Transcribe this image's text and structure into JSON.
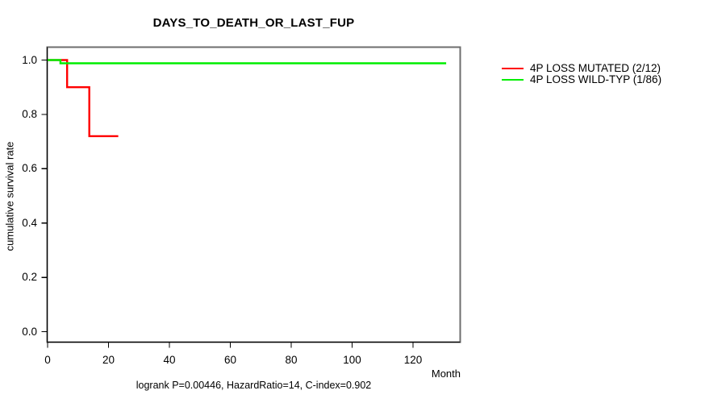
{
  "chart_data": {
    "type": "line",
    "subtype": "kaplan-meier-step",
    "title": "DAYS_TO_DEATH_OR_LAST_FUP",
    "xlabel": "Month",
    "ylabel": "cumulative survival rate",
    "annotation": "logrank P=0.00446, HazardRatio=14, C-index=0.902",
    "x_ticks": [
      "0",
      "20",
      "40",
      "60",
      "80",
      "100",
      "120"
    ],
    "y_ticks": [
      "0.0",
      "0.2",
      "0.4",
      "0.6",
      "0.8",
      "1.0"
    ],
    "xlim": [
      0,
      135.5
    ],
    "ylim": [
      -0.04,
      1.04
    ],
    "grid": false,
    "legend_position": "right-outside",
    "colors": {
      "mutated": "#ff0000",
      "wildtype": "#00ee00",
      "box_border": "#6e6e6e",
      "axis": "#000000"
    },
    "series": [
      {
        "name": "4P LOSS MUTATED (2/12)",
        "color": "#ff0000",
        "points": [
          [
            0,
            1.0
          ],
          [
            6.4,
            1.0
          ],
          [
            6.4,
            0.9
          ],
          [
            13.7,
            0.9
          ],
          [
            13.7,
            0.72
          ],
          [
            23.2,
            0.72
          ]
        ]
      },
      {
        "name": "4P LOSS WILD-TYP (1/86)",
        "color": "#00ee00",
        "points": [
          [
            0,
            1.0
          ],
          [
            4.2,
            1.0
          ],
          [
            4.2,
            0.988
          ],
          [
            130.9,
            0.988
          ]
        ]
      }
    ]
  }
}
